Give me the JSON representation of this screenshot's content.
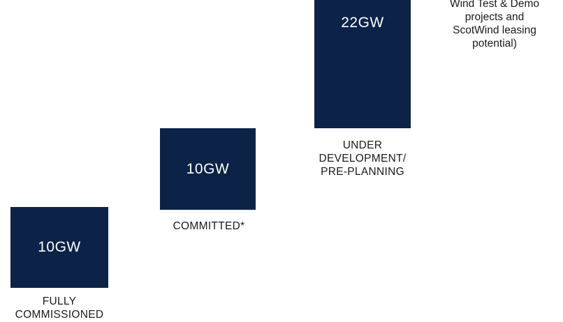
{
  "chart_data": {
    "type": "bar",
    "categories": [
      "FULLY COMMISSIONED",
      "COMMITTED*",
      "UNDER DEVELOPMENT/ PRE-PLANNING"
    ],
    "values": [
      10,
      10,
      22
    ],
    "unit": "GW",
    "value_labels": [
      "10GW",
      "10GW",
      "22GW"
    ],
    "category_labels": [
      "FULLY\nCOMMISSIONED",
      "COMMITTED*",
      "UNDER\nDEVELOPMENT/\nPRE-PLANNING"
    ],
    "colors": {
      "bar": "#0c2347"
    }
  },
  "note_text": "Wind Test & Demo\nprojects and\nScotWind leasing\npotential)"
}
